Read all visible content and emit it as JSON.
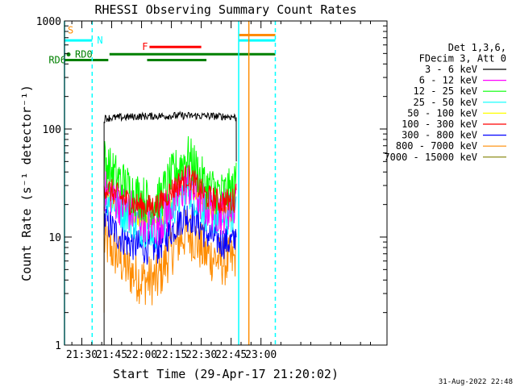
{
  "chart_data": {
    "type": "line",
    "title": "RHESSI Observing Summary Count Rates",
    "xlabel": "Start Time (29-Apr-17 21:20:02)",
    "ylabel": "Count Rate (s⁻¹ detector⁻¹)",
    "yscale": "log",
    "xlim_minutes": [
      21.3,
      183.3
    ],
    "ylim": [
      1,
      1000
    ],
    "x_tick_labels": [
      "21:30",
      "21:45",
      "22:00",
      "22:15",
      "22:30",
      "22:45",
      "23:00"
    ],
    "x_tick_minutes": [
      30,
      45,
      60,
      75,
      90,
      105,
      120
    ],
    "y_tick_labels": [
      "1",
      "10",
      "100",
      "1000"
    ],
    "y_tick_values": [
      1,
      10,
      100,
      1000
    ],
    "legend_header": [
      "Det 1,3,6,",
      "FDecim 3, Att 0"
    ],
    "series": [
      {
        "name": "3 - 6 keV",
        "color": "#000000",
        "knots": [
          [
            41.2,
            123
          ],
          [
            42,
            126
          ],
          [
            60,
            131
          ],
          [
            80,
            133
          ],
          [
            100,
            131
          ],
          [
            106.5,
            130
          ],
          [
            107.6,
            125
          ]
        ]
      },
      {
        "name": "6 - 12 keV",
        "color": "#ff00ff",
        "knots": [
          [
            41.2,
            28
          ],
          [
            47,
            23
          ],
          [
            53,
            18
          ],
          [
            60,
            15
          ],
          [
            68,
            13
          ],
          [
            74,
            18
          ],
          [
            80,
            27
          ],
          [
            83,
            33
          ],
          [
            86,
            27
          ],
          [
            92,
            20
          ],
          [
            100,
            17
          ],
          [
            106.5,
            20
          ],
          [
            107.6,
            27
          ]
        ]
      },
      {
        "name": "12 - 25 keV",
        "color": "#00ff00",
        "knots": [
          [
            41.2,
            52
          ],
          [
            44,
            42
          ],
          [
            50,
            32
          ],
          [
            57,
            25
          ],
          [
            64,
            21
          ],
          [
            69,
            22
          ],
          [
            74,
            33
          ],
          [
            80,
            48
          ],
          [
            83,
            55
          ],
          [
            86,
            47
          ],
          [
            92,
            30
          ],
          [
            100,
            25
          ],
          [
            106.5,
            27
          ],
          [
            107.6,
            38
          ]
        ]
      },
      {
        "name": "25 - 50 keV",
        "color": "#00ffff",
        "knots": [
          [
            41.2,
            26
          ],
          [
            47,
            21
          ],
          [
            53,
            16
          ],
          [
            60,
            13
          ],
          [
            68,
            12
          ],
          [
            74,
            17
          ],
          [
            80,
            25
          ],
          [
            83,
            30
          ],
          [
            86,
            25
          ],
          [
            92,
            18
          ],
          [
            100,
            15
          ],
          [
            106.5,
            17
          ],
          [
            107.6,
            24
          ]
        ]
      },
      {
        "name": "50 - 100 keV",
        "color": "#ffff00",
        "knots": [
          [
            41.2,
            25
          ],
          [
            50,
            18
          ],
          [
            60,
            14
          ],
          [
            70,
            14
          ],
          [
            80,
            26
          ],
          [
            83,
            30
          ],
          [
            86,
            26
          ],
          [
            96,
            17
          ],
          [
            106.5,
            16
          ]
        ]
      },
      {
        "name": "100 - 300 keV",
        "color": "#ff0000",
        "knots": [
          [
            41.2,
            30
          ],
          [
            44,
            27
          ],
          [
            50,
            23
          ],
          [
            57,
            20
          ],
          [
            64,
            19
          ],
          [
            69,
            20
          ],
          [
            74,
            26
          ],
          [
            80,
            33
          ],
          [
            83,
            37
          ],
          [
            86,
            33
          ],
          [
            92,
            24
          ],
          [
            100,
            21
          ],
          [
            106.5,
            22
          ],
          [
            107.6,
            30
          ]
        ]
      },
      {
        "name": "300 - 800 keV",
        "color": "#0000ff",
        "knots": [
          [
            41.2,
            15
          ],
          [
            47,
            11
          ],
          [
            53,
            9
          ],
          [
            60,
            8
          ],
          [
            68,
            8
          ],
          [
            74,
            11
          ],
          [
            80,
            15
          ],
          [
            83,
            16
          ],
          [
            86,
            15
          ],
          [
            92,
            11
          ],
          [
            100,
            9
          ],
          [
            106.5,
            9
          ],
          [
            107.6,
            12
          ]
        ]
      },
      {
        "name": "800 - 7000 keV",
        "color": "#ff8c00",
        "knots": [
          [
            41.2,
            9
          ],
          [
            47,
            7
          ],
          [
            53,
            5
          ],
          [
            60,
            4
          ],
          [
            68,
            4
          ],
          [
            74,
            7
          ],
          [
            80,
            10
          ],
          [
            83,
            11
          ],
          [
            86,
            10
          ],
          [
            92,
            7
          ],
          [
            100,
            6
          ],
          [
            106.5,
            6
          ],
          [
            107.6,
            8
          ]
        ]
      },
      {
        "name": "7000 - 15000 keV",
        "color": "#808000",
        "knots": []
      }
    ],
    "state_bars": [
      {
        "label": "S",
        "color": "#ff8c00",
        "y": 820,
        "segments": [
          [
            21.3,
            21.3
          ]
        ]
      },
      {
        "label": "N",
        "color": "#00ffff",
        "y": 660,
        "segments": [
          [
            21.3,
            35.2
          ],
          [
            108.8,
            127.2
          ]
        ]
      },
      {
        "label": "",
        "color": "#ff8c00",
        "y": 740,
        "segments": [
          [
            108.8,
            127.2
          ]
        ]
      },
      {
        "label": "F",
        "color": "#ff0000",
        "y": 575,
        "segments": [
          [
            64,
            90
          ]
        ]
      },
      {
        "label": "RD0",
        "color": "#008000",
        "y": 490,
        "segments": [
          [
            21.3,
            21.8
          ]
        ]
      },
      {
        "label": "",
        "color": "#008000",
        "y": 492,
        "segments": [
          [
            43.9,
            127.2
          ]
        ]
      },
      {
        "label": "RD6",
        "color": "#008000",
        "y": 435,
        "segments": [
          [
            21.3,
            43.3
          ],
          [
            62.8,
            92.6
          ]
        ]
      }
    ],
    "vertical_lines": [
      {
        "x": 21.3,
        "color": "#00ffff",
        "style": "solid"
      },
      {
        "x": 35.2,
        "color": "#00ffff",
        "style": "dashed"
      },
      {
        "x": 108.8,
        "color": "#00ffff",
        "style": "solid"
      },
      {
        "x": 113.9,
        "color": "#ff8c00",
        "style": "solid"
      },
      {
        "x": 127.2,
        "color": "#00ffff",
        "style": "dashed"
      }
    ],
    "timestamp": "31-Aug-2022 22:48"
  }
}
